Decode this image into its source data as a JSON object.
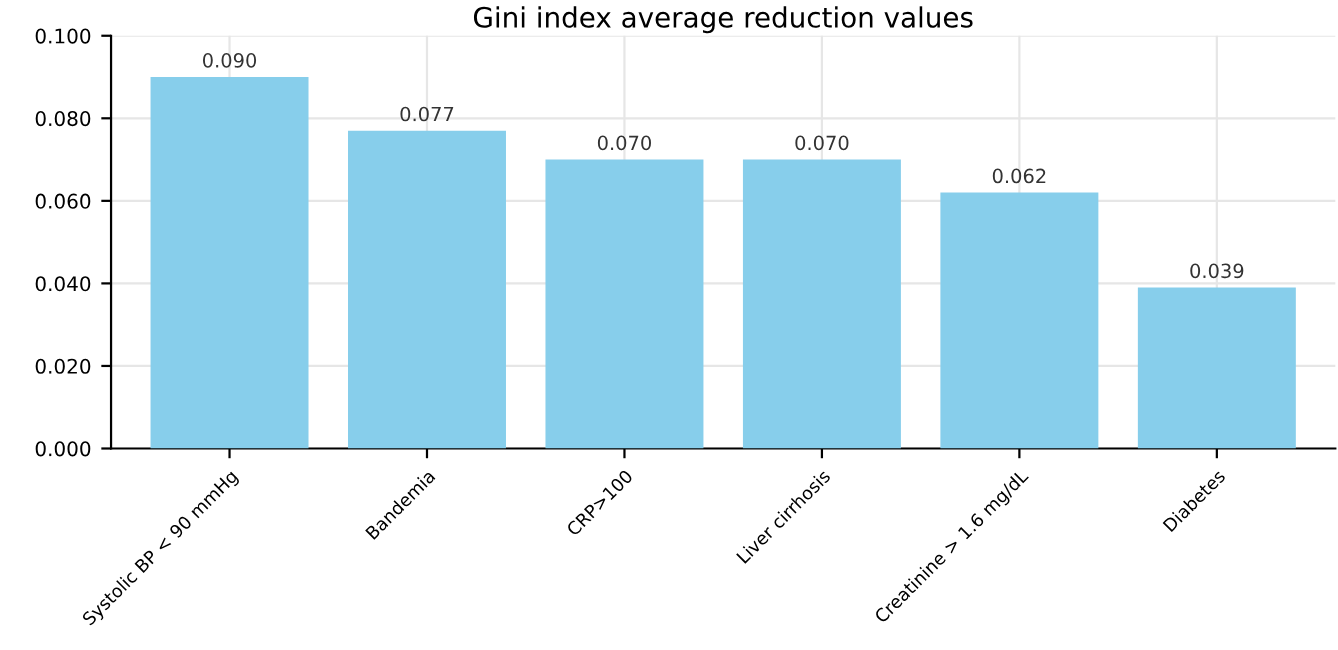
{
  "chart_data": {
    "type": "bar",
    "title": "Gini index average reduction values",
    "categories": [
      "Systolic BP < 90 mmHg",
      "Bandemia",
      "CRP>100",
      "Liver cirrhosis",
      "Creatinine > 1.6 mg/dL",
      "Diabetes"
    ],
    "values": [
      0.09,
      0.077,
      0.07,
      0.07,
      0.062,
      0.039
    ],
    "value_labels": [
      "0.090",
      "0.077",
      "0.070",
      "0.070",
      "0.062",
      "0.039"
    ],
    "color": "#87ceeb",
    "ylim": [
      0,
      0.1
    ],
    "yticks": [
      {
        "value": 0,
        "label": "0.000"
      },
      {
        "value": 0.02,
        "label": "0.020"
      },
      {
        "value": 0.04,
        "label": "0.040"
      },
      {
        "value": 0.06,
        "label": "0.060"
      },
      {
        "value": 0.08,
        "label": "0.080"
      },
      {
        "value": 0.1,
        "label": "0.100"
      }
    ],
    "grid": true
  }
}
